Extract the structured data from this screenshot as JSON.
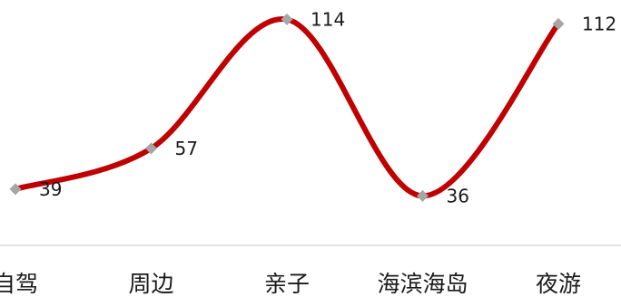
{
  "chart_data": {
    "type": "line",
    "smooth": true,
    "categories": [
      "自驾",
      "周边",
      "亲子",
      "海滨海岛",
      "夜游"
    ],
    "series": [
      {
        "values": [
          39,
          57,
          114,
          36,
          112
        ],
        "color": "#c00000",
        "marker": "diamond",
        "marker_color": "#a6a6a6"
      }
    ],
    "data_labels": [
      "39",
      "57",
      "114",
      "36",
      "112"
    ],
    "title": "",
    "xlabel": "",
    "ylabel": "",
    "ylim": [
      0,
      120
    ],
    "grid": false,
    "legend": "none",
    "axis_line_color": "#d9d9d9"
  }
}
